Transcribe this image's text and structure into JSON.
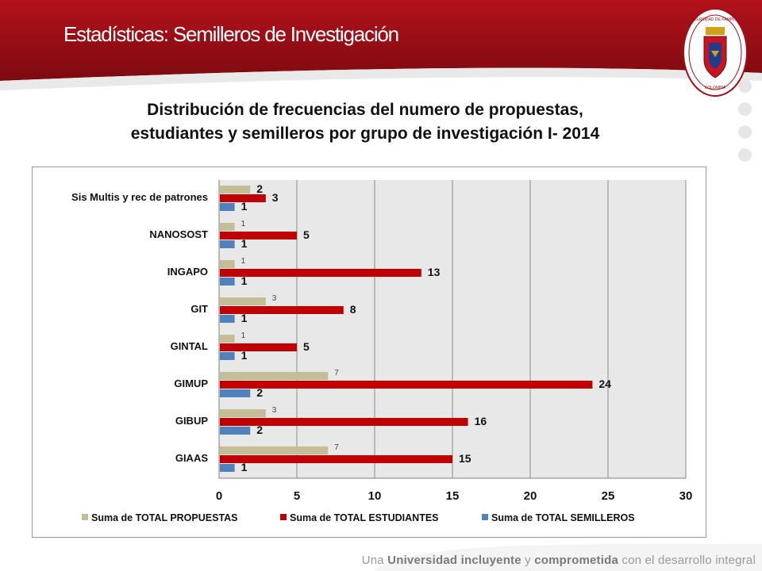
{
  "header": {
    "title": "Estadísticas: Semilleros de Investigación",
    "logo_text_top": "UNIVERSIDAD DE PAMPLONA",
    "logo_text_bottom": "COLOMBIA",
    "brand_color": "#a30f17"
  },
  "subtitle": {
    "line1": "Distribución de frecuencias del numero de propuestas,",
    "line2": "estudiantes y semilleros por grupo de investigación  I- 2014"
  },
  "footer": {
    "part1": "Una ",
    "part2": "Universidad incluyente",
    "part3": " y ",
    "part4": "comprometida",
    "part5": " con el desarrollo integral"
  },
  "chart_data": {
    "type": "bar",
    "orientation": "horizontal",
    "categories": [
      "Sis Multis y rec de patrones",
      "NANOSOST",
      "INGAPO",
      "GIT",
      "GINTAL",
      "GIMUP",
      "GIBUP",
      "GIAAS"
    ],
    "series": [
      {
        "name": "Suma de TOTAL PROPUESTAS",
        "color": "#c4bd97",
        "values": [
          2,
          1,
          1,
          3,
          1,
          7,
          3,
          7
        ]
      },
      {
        "name": "Suma de TOTAL ESTUDIANTES",
        "color": "#c00000",
        "values": [
          3,
          5,
          13,
          8,
          5,
          24,
          16,
          15
        ]
      },
      {
        "name": "Suma de TOTAL SEMILLEROS",
        "color": "#4f81bd",
        "values": [
          1,
          1,
          1,
          1,
          1,
          2,
          2,
          1
        ]
      }
    ],
    "xlim": [
      0,
      30
    ],
    "xticks": [
      0,
      5,
      10,
      15,
      20,
      25,
      30
    ],
    "grid": true,
    "legend": "bottom",
    "plot_background": "#e8e8e8"
  }
}
